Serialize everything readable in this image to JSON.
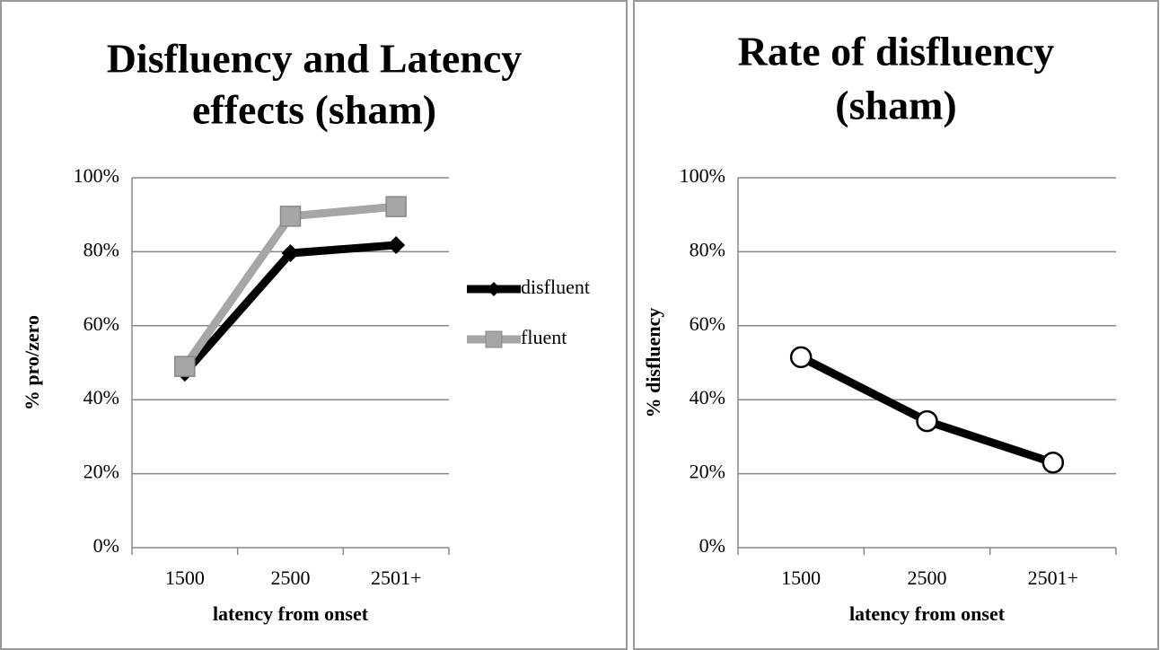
{
  "chart_data": [
    {
      "type": "line",
      "title": [
        "Disfluency and Latency",
        "effects (sham)"
      ],
      "x_label": "latency from onset",
      "y_label": "% pro/zero",
      "categories": [
        "1500",
        "2500",
        "2501+"
      ],
      "series": [
        {
          "name": "disfluent",
          "color": "#000000",
          "marker": "diamond",
          "values": [
            47.3,
            79.6,
            81.8
          ]
        },
        {
          "name": "fluent",
          "color": "#a6a6a6",
          "marker": "square",
          "values": [
            49,
            89.6,
            92.2
          ]
        }
      ],
      "ylim": [
        0,
        100
      ],
      "yticks": [
        {
          "value": 0,
          "label": "0%"
        },
        {
          "value": 20,
          "label": "20%"
        },
        {
          "value": 40,
          "label": "40%"
        },
        {
          "value": 60,
          "label": "60%"
        },
        {
          "value": 80,
          "label": "80%"
        },
        {
          "value": 100,
          "label": "100%"
        }
      ],
      "grid": true,
      "legend": "right"
    },
    {
      "type": "line",
      "title": [
        "Rate of disfluency",
        "(sham)"
      ],
      "x_label": "latency from onset",
      "y_label": "% disfluency",
      "categories": [
        "1500",
        "2500",
        "2501+"
      ],
      "series": [
        {
          "color": "#000000",
          "marker": "circle",
          "values": [
            51.5,
            34.2,
            23
          ]
        }
      ],
      "ylim": [
        0,
        100
      ],
      "yticks": [
        {
          "value": 0,
          "label": "0%"
        },
        {
          "value": 20,
          "label": "20%"
        },
        {
          "value": 40,
          "label": "40%"
        },
        {
          "value": 60,
          "label": "60%"
        },
        {
          "value": 80,
          "label": "80%"
        },
        {
          "value": 100,
          "label": "100%"
        }
      ],
      "grid": true
    }
  ]
}
